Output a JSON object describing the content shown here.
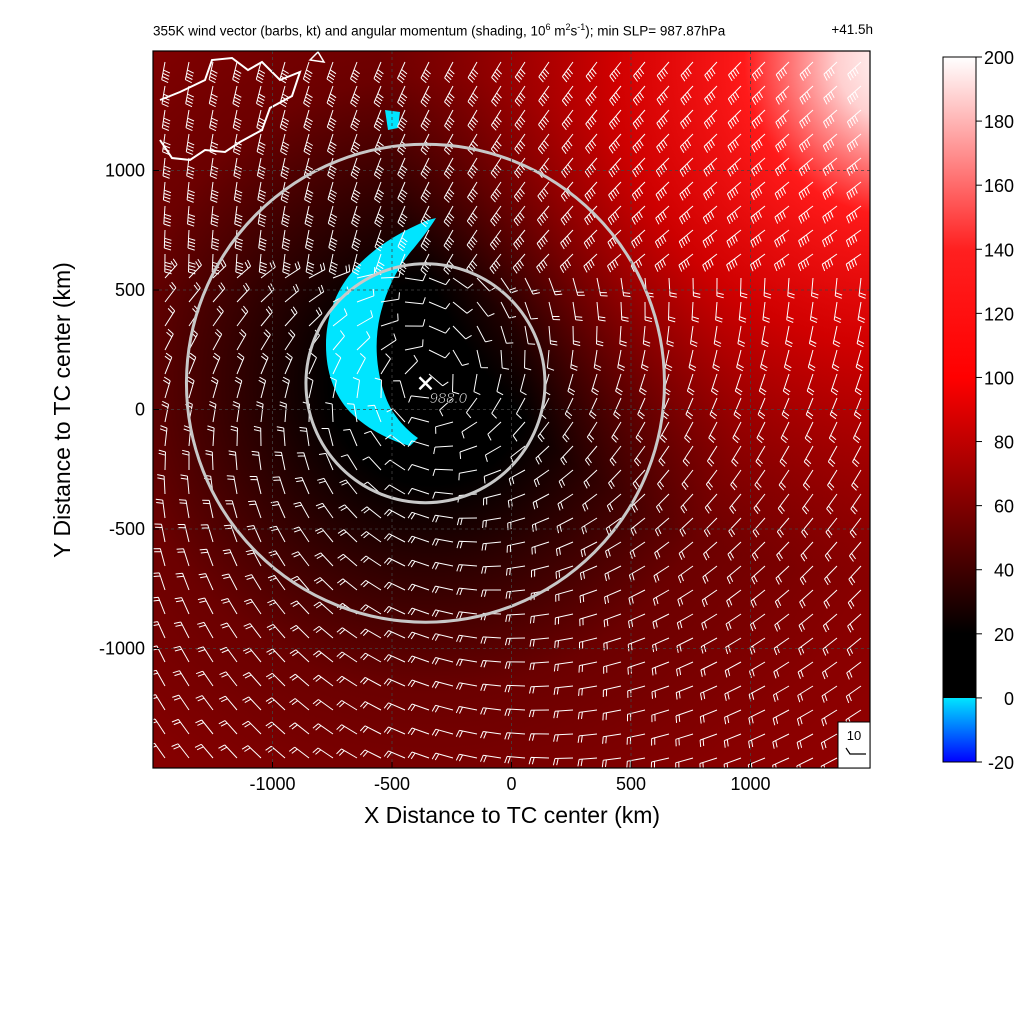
{
  "chart_data": {
    "type": "heatmap",
    "title_main": "355K wind vector (barbs, kt) and angular momentum (shading, 10",
    "title_exp1": "6",
    "title_mid1": " m",
    "title_exp2": "2",
    "title_mid2": "s",
    "title_exp3": "-1",
    "title_tail": "); min SLP= 987.87hPa",
    "lead_time": "+41.5h",
    "xlabel": "X Distance to TC center (km)",
    "ylabel": "Y Distance to TC center (km)",
    "xlim": [
      -1500,
      1500
    ],
    "ylim": [
      -1500,
      1500
    ],
    "xticks": [
      -1000,
      -500,
      0,
      500,
      1000
    ],
    "yticks": [
      -1000,
      -500,
      0,
      500,
      1000
    ],
    "grid": true,
    "center_marker": {
      "x": -360,
      "y": 110,
      "label": "988.0"
    },
    "circles": [
      {
        "cx": -360,
        "cy": 110,
        "r": 500
      },
      {
        "cx": -360,
        "cy": 110,
        "r": 1000
      }
    ],
    "colorbar": {
      "ticks": [
        200,
        180,
        160,
        140,
        120,
        100,
        80,
        60,
        40,
        20,
        0,
        -20
      ],
      "range": [
        -20,
        200
      ],
      "stops": [
        {
          "value": -20,
          "color": "#0000ff"
        },
        {
          "value": 0,
          "color": "#00e5ff"
        },
        {
          "value": 0.01,
          "color": "#000000"
        },
        {
          "value": 20,
          "color": "#000000"
        },
        {
          "value": 60,
          "color": "#800000"
        },
        {
          "value": 100,
          "color": "#ff0000"
        },
        {
          "value": 140,
          "color": "#ff2020"
        },
        {
          "value": 200,
          "color": "#ffffff"
        }
      ]
    },
    "reference_barb": {
      "label": "10",
      "speed_kt": 10
    }
  }
}
